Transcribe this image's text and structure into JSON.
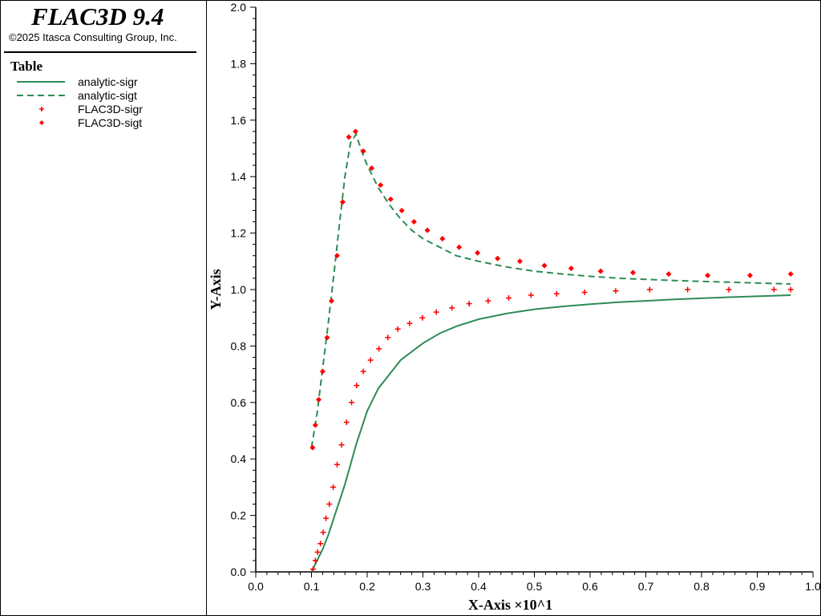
{
  "app": {
    "title": "FLAC3D 9.4",
    "copyright": "©2025 Itasca Consulting Group, Inc."
  },
  "legend": {
    "title": "Table",
    "items": [
      {
        "label": "analytic-sigr",
        "symbol": "solid-line",
        "color": "#2e8b57"
      },
      {
        "label": "analytic-sigt",
        "symbol": "dashed-line",
        "color": "#2e8b57"
      },
      {
        "label": "FLAC3D-sigr",
        "symbol": "plus-marker",
        "color": "#ff0000"
      },
      {
        "label": "FLAC3D-sigt",
        "symbol": "diamond-marker",
        "color": "#ff0000"
      }
    ]
  },
  "chart_data": {
    "type": "line",
    "title": "",
    "xlabel": "X-Axis ×10^1",
    "ylabel": "Y-Axis",
    "xlim": [
      0.0,
      1.0
    ],
    "ylim": [
      0.0,
      2.0
    ],
    "x_ticks": [
      "0.0",
      "0.1",
      "0.2",
      "0.3",
      "0.4",
      "0.5",
      "0.6",
      "0.7",
      "0.8",
      "0.9",
      "1.0"
    ],
    "y_ticks": [
      "0.0",
      "0.2",
      "0.4",
      "0.6",
      "0.8",
      "1.0",
      "1.2",
      "1.4",
      "1.6",
      "1.8",
      "2.0"
    ],
    "grid": false,
    "series": [
      {
        "name": "analytic-sigr",
        "style": "solid",
        "color": "#2e8b57",
        "x": [
          0.1,
          0.11,
          0.12,
          0.13,
          0.14,
          0.15,
          0.16,
          0.17,
          0.18,
          0.2,
          0.22,
          0.24,
          0.26,
          0.28,
          0.3,
          0.33,
          0.36,
          0.4,
          0.45,
          0.5,
          0.55,
          0.6,
          0.65,
          0.7,
          0.75,
          0.8,
          0.85,
          0.9,
          0.96
        ],
        "y": [
          0.0,
          0.04,
          0.08,
          0.13,
          0.19,
          0.25,
          0.31,
          0.38,
          0.45,
          0.57,
          0.65,
          0.7,
          0.75,
          0.78,
          0.81,
          0.845,
          0.87,
          0.895,
          0.915,
          0.93,
          0.94,
          0.948,
          0.955,
          0.96,
          0.965,
          0.969,
          0.973,
          0.976,
          0.98
        ]
      },
      {
        "name": "analytic-sigt",
        "style": "dashed",
        "color": "#2e8b57",
        "x": [
          0.1,
          0.11,
          0.12,
          0.13,
          0.14,
          0.15,
          0.16,
          0.17,
          0.18,
          0.19,
          0.2,
          0.22,
          0.24,
          0.26,
          0.28,
          0.3,
          0.33,
          0.36,
          0.4,
          0.45,
          0.5,
          0.55,
          0.6,
          0.65,
          0.7,
          0.75,
          0.8,
          0.85,
          0.9,
          0.96
        ],
        "y": [
          0.44,
          0.56,
          0.72,
          0.88,
          1.05,
          1.23,
          1.4,
          1.52,
          1.55,
          1.49,
          1.44,
          1.36,
          1.3,
          1.25,
          1.21,
          1.18,
          1.15,
          1.12,
          1.1,
          1.08,
          1.065,
          1.055,
          1.047,
          1.04,
          1.036,
          1.032,
          1.029,
          1.026,
          1.023,
          1.02
        ]
      },
      {
        "name": "FLAC3D-sigr",
        "style": "plus",
        "color": "#ff0000",
        "x": [
          0.103,
          0.107,
          0.111,
          0.116,
          0.121,
          0.126,
          0.132,
          0.139,
          0.146,
          0.154,
          0.163,
          0.172,
          0.181,
          0.193,
          0.206,
          0.221,
          0.237,
          0.255,
          0.276,
          0.299,
          0.324,
          0.352,
          0.383,
          0.417,
          0.454,
          0.494,
          0.54,
          0.59,
          0.646,
          0.707,
          0.775,
          0.849,
          0.93,
          0.96
        ],
        "y": [
          0.01,
          0.04,
          0.07,
          0.1,
          0.14,
          0.19,
          0.24,
          0.3,
          0.38,
          0.45,
          0.53,
          0.6,
          0.66,
          0.71,
          0.75,
          0.79,
          0.83,
          0.86,
          0.88,
          0.9,
          0.92,
          0.935,
          0.95,
          0.96,
          0.97,
          0.98,
          0.985,
          0.99,
          0.995,
          1.0,
          1.0,
          1.0,
          1.0,
          1.0
        ]
      },
      {
        "name": "FLAC3D-sigt",
        "style": "diamond",
        "color": "#ff0000",
        "x": [
          0.102,
          0.107,
          0.113,
          0.12,
          0.128,
          0.136,
          0.146,
          0.156,
          0.167,
          0.179,
          0.193,
          0.208,
          0.224,
          0.242,
          0.262,
          0.284,
          0.308,
          0.335,
          0.365,
          0.398,
          0.434,
          0.474,
          0.518,
          0.566,
          0.619,
          0.677,
          0.741,
          0.811,
          0.887,
          0.96
        ],
        "y": [
          0.44,
          0.52,
          0.61,
          0.71,
          0.83,
          0.96,
          1.12,
          1.31,
          1.54,
          1.56,
          1.49,
          1.43,
          1.37,
          1.32,
          1.28,
          1.24,
          1.21,
          1.18,
          1.15,
          1.13,
          1.11,
          1.1,
          1.085,
          1.075,
          1.065,
          1.06,
          1.055,
          1.05,
          1.05,
          1.055
        ]
      }
    ]
  }
}
